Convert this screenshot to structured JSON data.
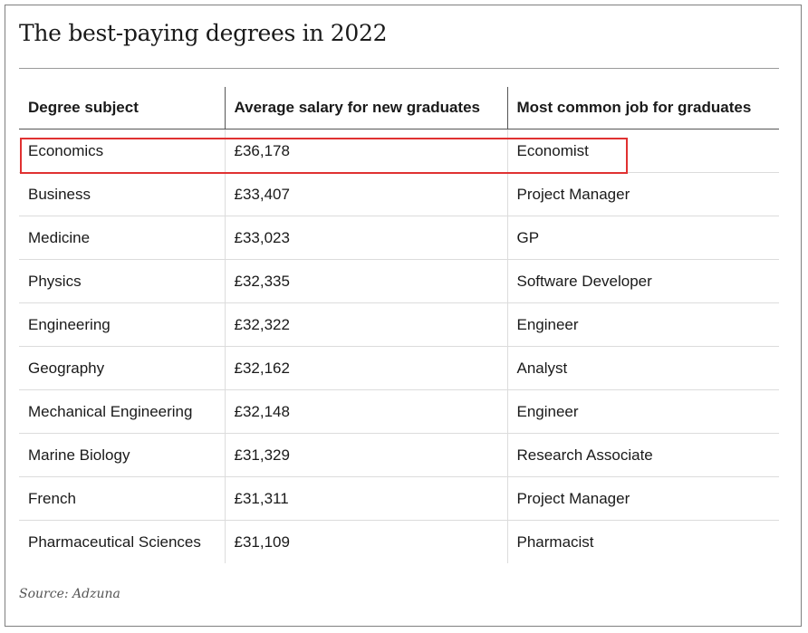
{
  "title": "The best-paying degrees in 2022",
  "table": {
    "headers": [
      "Degree subject",
      "Average salary for new graduates",
      "Most common job for graduates"
    ],
    "rows": [
      [
        "Economics",
        "£36,178",
        "Economist"
      ],
      [
        "Business",
        "£33,407",
        "Project Manager"
      ],
      [
        "Medicine",
        "£33,023",
        "GP"
      ],
      [
        "Physics",
        "£32,335",
        "Software Developer"
      ],
      [
        "Engineering",
        "£32,322",
        "Engineer"
      ],
      [
        "Geography",
        "£32,162",
        "Analyst"
      ],
      [
        "Mechanical Engineering",
        "£32,148",
        "Engineer"
      ],
      [
        "Marine Biology",
        "£31,329",
        "Research Associate"
      ],
      [
        "French",
        "£31,311",
        "Project Manager"
      ],
      [
        "Pharmaceutical Sciences",
        "£31,109",
        "Pharmacist"
      ]
    ],
    "highlighted_row": "Economics"
  },
  "source": "Source: Adzuna",
  "colors": {
    "highlight_border": "#e03131",
    "text": "#1a1a1a",
    "row_divider": "#dcdcdc"
  }
}
